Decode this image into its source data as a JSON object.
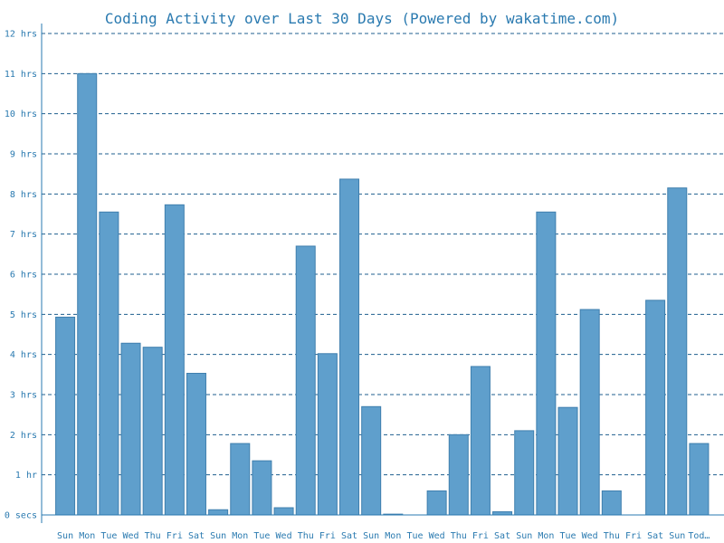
{
  "chart_data": {
    "type": "bar",
    "title": "Coding Activity over Last 30 Days (Powered by wakatime.com)",
    "xlabel": "",
    "ylabel": "",
    "ylim": [
      0,
      12
    ],
    "y_ticks": [
      {
        "value": 0,
        "label": "0 secs"
      },
      {
        "value": 1,
        "label": "1 hr"
      },
      {
        "value": 2,
        "label": "2 hrs"
      },
      {
        "value": 3,
        "label": "3 hrs"
      },
      {
        "value": 4,
        "label": "4 hrs"
      },
      {
        "value": 5,
        "label": "5 hrs"
      },
      {
        "value": 6,
        "label": "6 hrs"
      },
      {
        "value": 7,
        "label": "7 hrs"
      },
      {
        "value": 8,
        "label": "8 hrs"
      },
      {
        "value": 9,
        "label": "9 hrs"
      },
      {
        "value": 10,
        "label": "10 hrs"
      },
      {
        "value": 11,
        "label": "11 hrs"
      },
      {
        "value": 12,
        "label": "12 hrs"
      }
    ],
    "grid": true,
    "categories": [
      "Sun",
      "Mon",
      "Tue",
      "Wed",
      "Thu",
      "Fri",
      "Sat",
      "Sun",
      "Mon",
      "Tue",
      "Wed",
      "Thu",
      "Fri",
      "Sat",
      "Sun",
      "Mon",
      "Tue",
      "Wed",
      "Thu",
      "Fri",
      "Sat",
      "Sun",
      "Mon",
      "Tue",
      "Wed",
      "Thu",
      "Fri",
      "Sat",
      "Sun",
      "Tod…"
    ],
    "values": [
      4.93,
      11.0,
      7.55,
      4.28,
      4.18,
      7.73,
      3.53,
      0.13,
      1.78,
      1.35,
      0.18,
      6.7,
      4.02,
      8.37,
      2.7,
      0.02,
      0.0,
      0.6,
      2.0,
      3.7,
      0.08,
      2.1,
      7.55,
      2.68,
      5.12,
      0.6,
      0.0,
      5.35,
      8.15,
      1.78
    ],
    "colors": {
      "bar_fill": "#5f9fcc",
      "bar_stroke": "#3f7fae",
      "text": "#2a7ab0",
      "grid": "#1f5f8f"
    }
  }
}
